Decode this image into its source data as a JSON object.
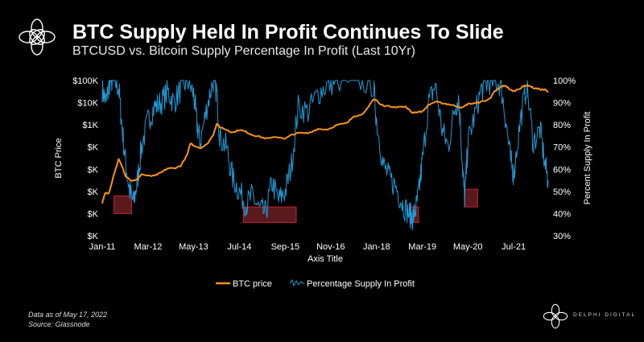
{
  "header": {
    "title": "BTC Supply Held In Profit Continues To Slide",
    "subtitle": "BTCUSD vs. Bitcoin Supply Percentage In Profit (Last 10Yr)"
  },
  "footer": {
    "note_date": "Data as of May 17, 2022",
    "note_source": "Source: Glassnode",
    "brand": "DELPHI DIGITAL"
  },
  "colors": {
    "background": "#000000",
    "btc_price": "#f7931a",
    "supply_profit": "#1f9bd7",
    "highlight_border": "#c0272d",
    "highlight_fill": "#5a1a1d",
    "text": "#ffffff"
  },
  "chart_data": {
    "type": "line",
    "xlabel": "Axis Title",
    "ylabel_left": "BTC Price",
    "ylabel_right": "Percent Supply In Profit",
    "x_ticks": [
      "Jan-11",
      "Mar-12",
      "May-13",
      "Jul-14",
      "Sep-15",
      "Nov-16",
      "Jan-18",
      "Mar-19",
      "May-20",
      "Jul-21"
    ],
    "x_ticks_years": [
      2011.0,
      2012.17,
      2013.33,
      2014.5,
      2015.67,
      2016.83,
      2018.0,
      2019.17,
      2020.33,
      2021.5
    ],
    "x_range": [
      2011.0,
      2022.38
    ],
    "y_left_ticks": [
      "$100K",
      "$10K",
      "$1K",
      "$K",
      "$K",
      "$K",
      "$K",
      "$K"
    ],
    "y_left_log_range": [
      -2,
      5
    ],
    "y_right_ticks": [
      "100%",
      "90%",
      "80%",
      "70%",
      "60%",
      "50%",
      "40%",
      "30%"
    ],
    "y_right_range": [
      30,
      100
    ],
    "legend": [
      "BTC price",
      "Percentage Supply In Profit"
    ],
    "legend_position": "bottom",
    "series": [
      {
        "name": "BTC price",
        "axis": "left-log",
        "x": [
          2011.0,
          2011.08,
          2011.17,
          2011.3,
          2011.42,
          2011.5,
          2011.6,
          2011.75,
          2011.9,
          2012.0,
          2012.17,
          2012.33,
          2012.5,
          2012.67,
          2012.83,
          2013.0,
          2013.17,
          2013.25,
          2013.33,
          2013.5,
          2013.67,
          2013.83,
          2013.92,
          2014.0,
          2014.17,
          2014.33,
          2014.5,
          2014.67,
          2014.83,
          2015.0,
          2015.17,
          2015.5,
          2015.67,
          2015.83,
          2016.0,
          2016.25,
          2016.5,
          2016.75,
          2017.0,
          2017.25,
          2017.42,
          2017.58,
          2017.75,
          2017.92,
          2018.0,
          2018.08,
          2018.25,
          2018.5,
          2018.75,
          2018.9,
          2019.0,
          2019.17,
          2019.33,
          2019.5,
          2019.67,
          2019.83,
          2020.0,
          2020.2,
          2020.33,
          2020.5,
          2020.67,
          2020.83,
          2020.92,
          2021.0,
          2021.08,
          2021.2,
          2021.3,
          2021.42,
          2021.5,
          2021.67,
          2021.75,
          2021.87,
          2022.0,
          2022.17,
          2022.3,
          2022.38
        ],
        "values": [
          0.3,
          0.9,
          0.8,
          6,
          28,
          14,
          5,
          3,
          3.5,
          6,
          5,
          5,
          7,
          11,
          11,
          14,
          45,
          150,
          120,
          90,
          130,
          350,
          1100,
          800,
          600,
          450,
          600,
          480,
          350,
          300,
          240,
          280,
          240,
          350,
          430,
          420,
          650,
          620,
          1000,
          1200,
          2500,
          2700,
          4800,
          14000,
          13000,
          8500,
          7000,
          6500,
          6400,
          3600,
          3700,
          4000,
          8000,
          11000,
          9500,
          8500,
          7200,
          6000,
          8800,
          9300,
          11000,
          13000,
          18000,
          30000,
          38000,
          55000,
          58000,
          37000,
          33000,
          45000,
          55000,
          62000,
          46000,
          40000,
          38000,
          30000
        ]
      },
      {
        "name": "Percentage Supply In Profit",
        "axis": "right",
        "x": [
          2011.0,
          2011.1,
          2011.2,
          2011.3,
          2011.42,
          2011.5,
          2011.6,
          2011.7,
          2011.8,
          2011.9,
          2012.0,
          2012.17,
          2012.33,
          2012.5,
          2012.67,
          2012.83,
          2013.0,
          2013.17,
          2013.33,
          2013.42,
          2013.5,
          2013.67,
          2013.83,
          2013.92,
          2014.0,
          2014.17,
          2014.33,
          2014.5,
          2014.67,
          2014.83,
          2015.0,
          2015.17,
          2015.33,
          2015.5,
          2015.67,
          2015.83,
          2016.0,
          2016.25,
          2016.5,
          2016.75,
          2017.0,
          2017.5,
          2017.92,
          2018.0,
          2018.17,
          2018.33,
          2018.5,
          2018.67,
          2018.83,
          2018.92,
          2019.0,
          2019.08,
          2019.17,
          2019.33,
          2019.5,
          2019.67,
          2019.83,
          2020.0,
          2020.1,
          2020.2,
          2020.25,
          2020.33,
          2020.5,
          2020.67,
          2020.83,
          2021.0,
          2021.17,
          2021.3,
          2021.42,
          2021.5,
          2021.67,
          2021.83,
          2022.0,
          2022.17,
          2022.3,
          2022.38
        ],
        "values": [
          96,
          90,
          100,
          100,
          97,
          80,
          62,
          50,
          45,
          55,
          70,
          82,
          88,
          90,
          95,
          90,
          96,
          100,
          94,
          80,
          72,
          88,
          100,
          95,
          74,
          70,
          56,
          50,
          44,
          48,
          42,
          40,
          54,
          46,
          50,
          62,
          88,
          86,
          94,
          98,
          100,
          100,
          98,
          82,
          62,
          56,
          52,
          44,
          40,
          38,
          42,
          50,
          64,
          90,
          98,
          78,
          70,
          88,
          92,
          60,
          46,
          72,
          84,
          96,
          99,
          100,
          98,
          82,
          64,
          58,
          82,
          98,
          72,
          78,
          62,
          55
        ]
      }
    ],
    "highlight_boxes": [
      {
        "x_range": [
          2011.3,
          2011.75
        ],
        "y_range": [
          40,
          48
        ]
      },
      {
        "x_range": [
          2014.6,
          2015.95
        ],
        "y_range": [
          36,
          43
        ]
      },
      {
        "x_range": [
          2018.85,
          2019.07
        ],
        "y_range": [
          36,
          43
        ]
      },
      {
        "x_range": [
          2020.25,
          2020.58
        ],
        "y_range": [
          43,
          51
        ]
      }
    ]
  }
}
